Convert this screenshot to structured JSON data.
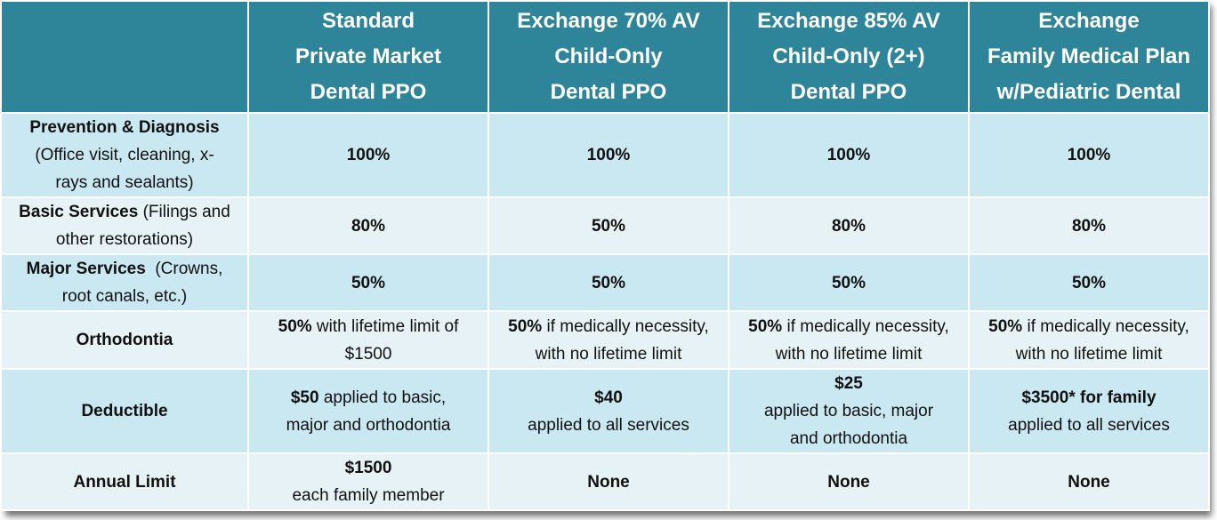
{
  "columns": [
    {
      "l1": "",
      "l2": "",
      "l3": ""
    },
    {
      "l1": "Standard",
      "l2": "Private Market",
      "l3": "Dental PPO"
    },
    {
      "l1": "Exchange 70% AV",
      "l2": "Child-Only",
      "l3": "Dental PPO"
    },
    {
      "l1": "Exchange 85% AV",
      "l2": "Child-Only (2+)",
      "l3": "Dental PPO"
    },
    {
      "l1": "Exchange",
      "l2": "Family Medical Plan",
      "l3": "w/Pediatric Dental"
    }
  ],
  "rows": {
    "prevention": {
      "label_bold": "Prevention & Diagnosis",
      "label_rest1": "(Office visit, cleaning, x-",
      "label_rest2": "rays and sealants)",
      "values": [
        "100%",
        "100%",
        "100%",
        "100%"
      ]
    },
    "basic": {
      "label_bold": "Basic Services",
      "label_rest1": " (Filings and",
      "label_rest2": "other restorations)",
      "values": [
        "80%",
        "50%",
        "80%",
        "80%"
      ]
    },
    "major": {
      "label_bold": "Major Services",
      "label_rest1": "  (Crowns,",
      "label_rest2": "root canals, etc.)",
      "values": [
        "50%",
        "50%",
        "50%",
        "50%"
      ]
    },
    "ortho": {
      "label": "Orthodontia",
      "cells": [
        {
          "bold": "50%",
          "rest": " with lifetime limit of",
          "line2": "$1500"
        },
        {
          "bold": "50%",
          "rest": " if medically necessity,",
          "line2": "with no lifetime limit"
        },
        {
          "bold": "50%",
          "rest": " if medically necessity,",
          "line2": "with no lifetime limit"
        },
        {
          "bold": "50%",
          "rest": " if medically necessity,",
          "line2": "with no lifetime limit"
        }
      ]
    },
    "deductible": {
      "label": "Deductible",
      "c1_bold": "$50",
      "c1_rest": " applied to basic,",
      "c1_line2": "major and orthodontia",
      "c2_bold": "$40",
      "c2_line2": "applied to all services",
      "c3_bold": "$25",
      "c3_line2": "applied to basic, major",
      "c3_line3": "and orthodontia",
      "c4_bold": "$3500* for family",
      "c4_line2": "applied to all services"
    },
    "annual": {
      "label": "Annual Limit",
      "c1_bold": "$1500",
      "c1_line2": "each family member",
      "c2": "None",
      "c3": "None",
      "c4": "None"
    }
  }
}
